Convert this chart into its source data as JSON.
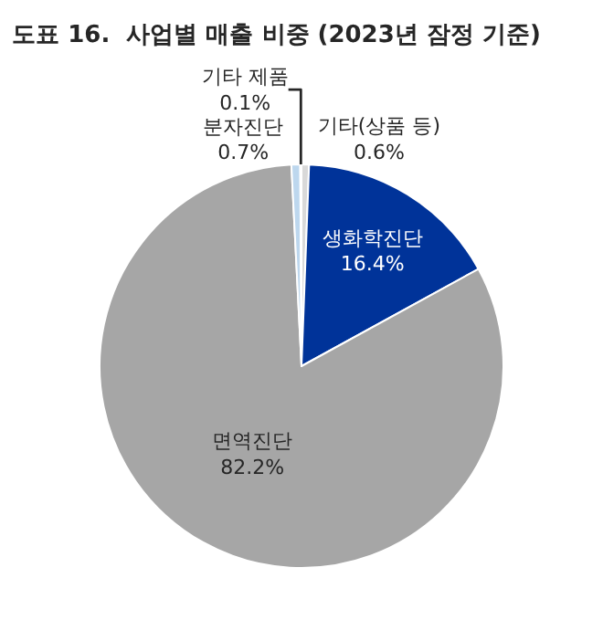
{
  "chart_data": {
    "type": "pie",
    "title": "도표 16.  사업별 매출 비중 (2023년 잠정 기준)",
    "categories": [
      "기타(상품 등)",
      "생화학진단",
      "면역진단",
      "분자진단",
      "기타 제품"
    ],
    "values": [
      0.6,
      16.4,
      82.2,
      0.7,
      0.1
    ],
    "colors": [
      "#d9d9d9",
      "#003399",
      "#a6a6a6",
      "#bdd7ee",
      "#e7eef8"
    ],
    "value_labels": [
      "0.6%",
      "16.4%",
      "82.2%",
      "0.7%",
      "0.1%"
    ],
    "legend": false
  }
}
